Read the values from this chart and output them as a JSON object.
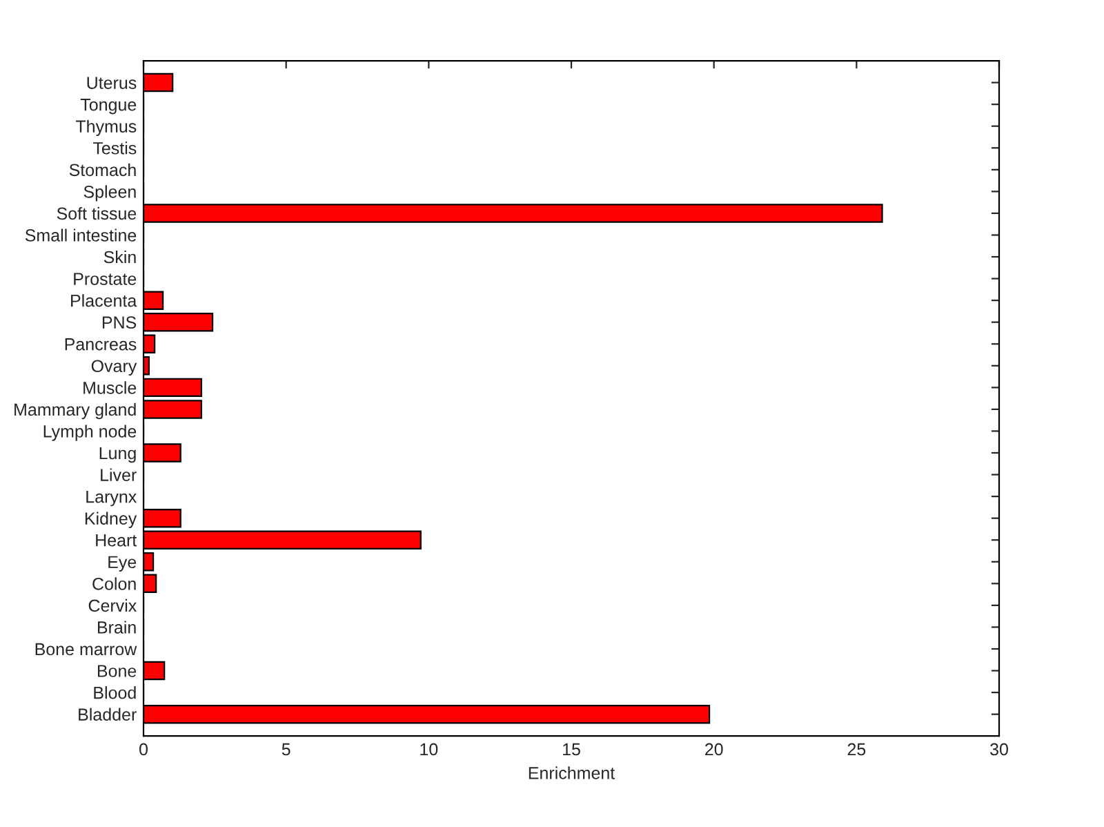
{
  "chart_data": {
    "type": "bar",
    "orientation": "horizontal",
    "xlabel": "Enrichment",
    "categories": [
      "Uterus",
      "Tongue",
      "Thymus",
      "Testis",
      "Stomach",
      "Spleen",
      "Soft tissue",
      "Small intestine",
      "Skin",
      "Prostate",
      "Placenta",
      "PNS",
      "Pancreas",
      "Ovary",
      "Muscle",
      "Mammary gland",
      "Lymph node",
      "Lung",
      "Liver",
      "Larynx",
      "Kidney",
      "Heart",
      "Eye",
      "Colon",
      "Cervix",
      "Brain",
      "Bone marrow",
      "Bone",
      "Blood",
      "Bladder"
    ],
    "values": [
      1.02,
      0,
      0,
      0,
      0,
      0,
      25.9,
      0,
      0,
      0,
      0.68,
      2.42,
      0.39,
      0.19,
      2.03,
      2.03,
      0,
      1.3,
      0,
      0,
      1.3,
      9.72,
      0.34,
      0.44,
      0,
      0,
      0,
      0.73,
      0,
      19.84
    ],
    "color": "#ff0000",
    "xlim": [
      0,
      30
    ],
    "xticks": [
      0,
      5,
      10,
      15,
      20,
      25,
      30
    ],
    "grid": false
  }
}
